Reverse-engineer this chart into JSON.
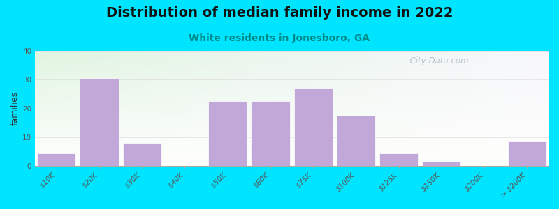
{
  "title": "Distribution of median family income in 2022",
  "subtitle": "White residents in Jonesboro, GA",
  "ylabel": "families",
  "categories": [
    "$10K",
    "$20K",
    "$30K",
    "$40K",
    "$50K",
    "$60K",
    "$75K",
    "$100K",
    "$125K",
    "$150K",
    "$200K",
    "> $200K"
  ],
  "values": [
    4.5,
    30.5,
    8,
    0,
    22.5,
    22.5,
    27,
    17.5,
    4.5,
    1.5,
    0,
    8.5
  ],
  "bar_color": "#c2a8d8",
  "bar_edgecolor": "#c2a8d8",
  "ylim": [
    0,
    40
  ],
  "yticks": [
    0,
    10,
    20,
    30,
    40
  ],
  "background_outer": "#00e5ff",
  "title_fontsize": 14,
  "subtitle_fontsize": 10,
  "ylabel_fontsize": 9,
  "tick_fontsize": 7.5,
  "watermark_text": "  City-Data.com",
  "bar_width": 0.9,
  "gridline_color": "#dddddd",
  "gridline_alpha": 0.8
}
